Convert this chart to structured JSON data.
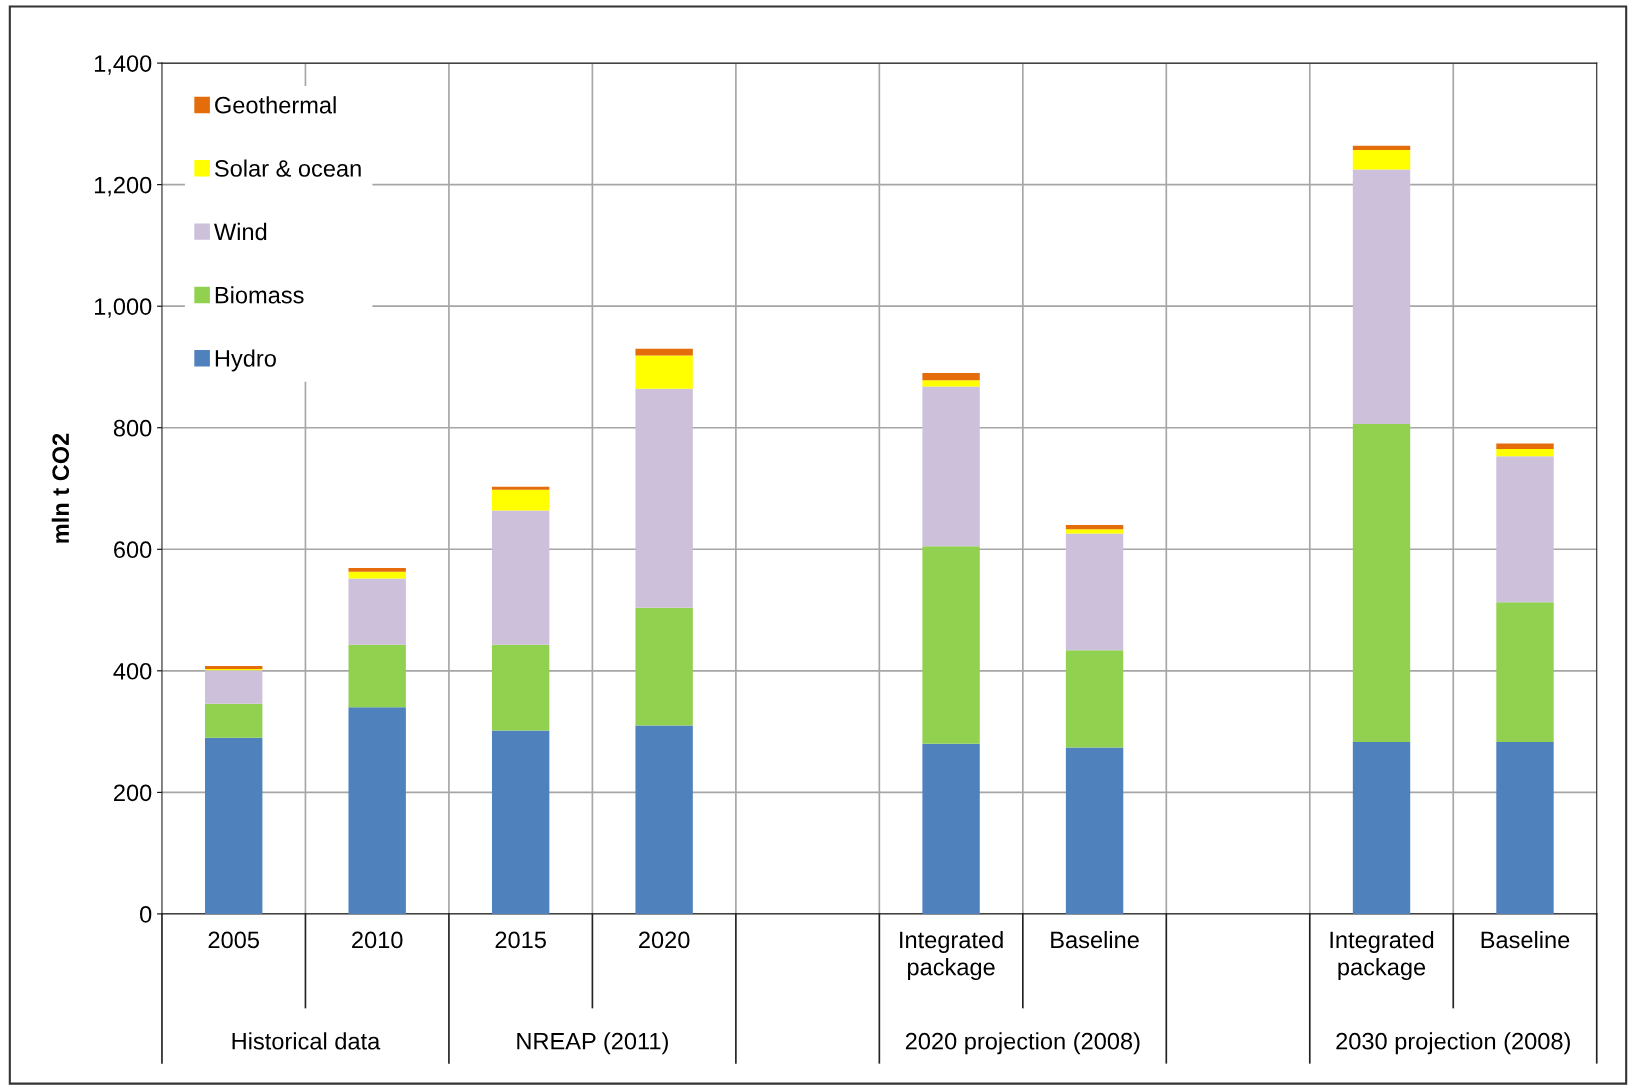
{
  "chart_data": {
    "type": "bar",
    "stacked": true,
    "ylabel": "mln t CO2",
    "categories": [
      "2005",
      "2010",
      "2015",
      "2020",
      null,
      "Integrated\npackage",
      "Baseline",
      null,
      "Integrated\npackage",
      "Baseline"
    ],
    "series": [
      {
        "name": "Hydro",
        "color": "#4f81bd",
        "values": [
          290,
          340,
          302,
          310,
          null,
          280,
          274,
          null,
          283,
          283
        ]
      },
      {
        "name": "Biomass",
        "color": "#92d050",
        "values": [
          56,
          103,
          141,
          194,
          null,
          325,
          160,
          null,
          523,
          230
        ]
      },
      {
        "name": "Wind",
        "color": "#ccc0da",
        "values": [
          55,
          109,
          221,
          360,
          null,
          263,
          192,
          null,
          419,
          240
        ]
      },
      {
        "name": "Solar & ocean",
        "color": "#ffff00",
        "values": [
          2,
          11,
          34,
          55,
          null,
          10,
          7,
          null,
          32,
          12
        ]
      },
      {
        "name": "Geothermal",
        "color": "#e46c0a",
        "values": [
          5,
          6,
          5,
          11,
          null,
          12,
          7,
          null,
          7,
          9
        ]
      }
    ],
    "annotations": [
      "Historical data",
      "NREAP (2011)",
      "2020 projection (2008)",
      "2030 projection (2008)"
    ],
    "ylim": [
      0,
      1400
    ],
    "yticks": [
      0,
      200,
      400,
      600,
      800,
      {
        "value": 1000,
        "label": "1,000"
      },
      {
        "value": 1200,
        "label": "1,200"
      },
      {
        "value": 1400,
        "label": "1,400"
      }
    ],
    "grid": true,
    "legend": "top left"
  }
}
